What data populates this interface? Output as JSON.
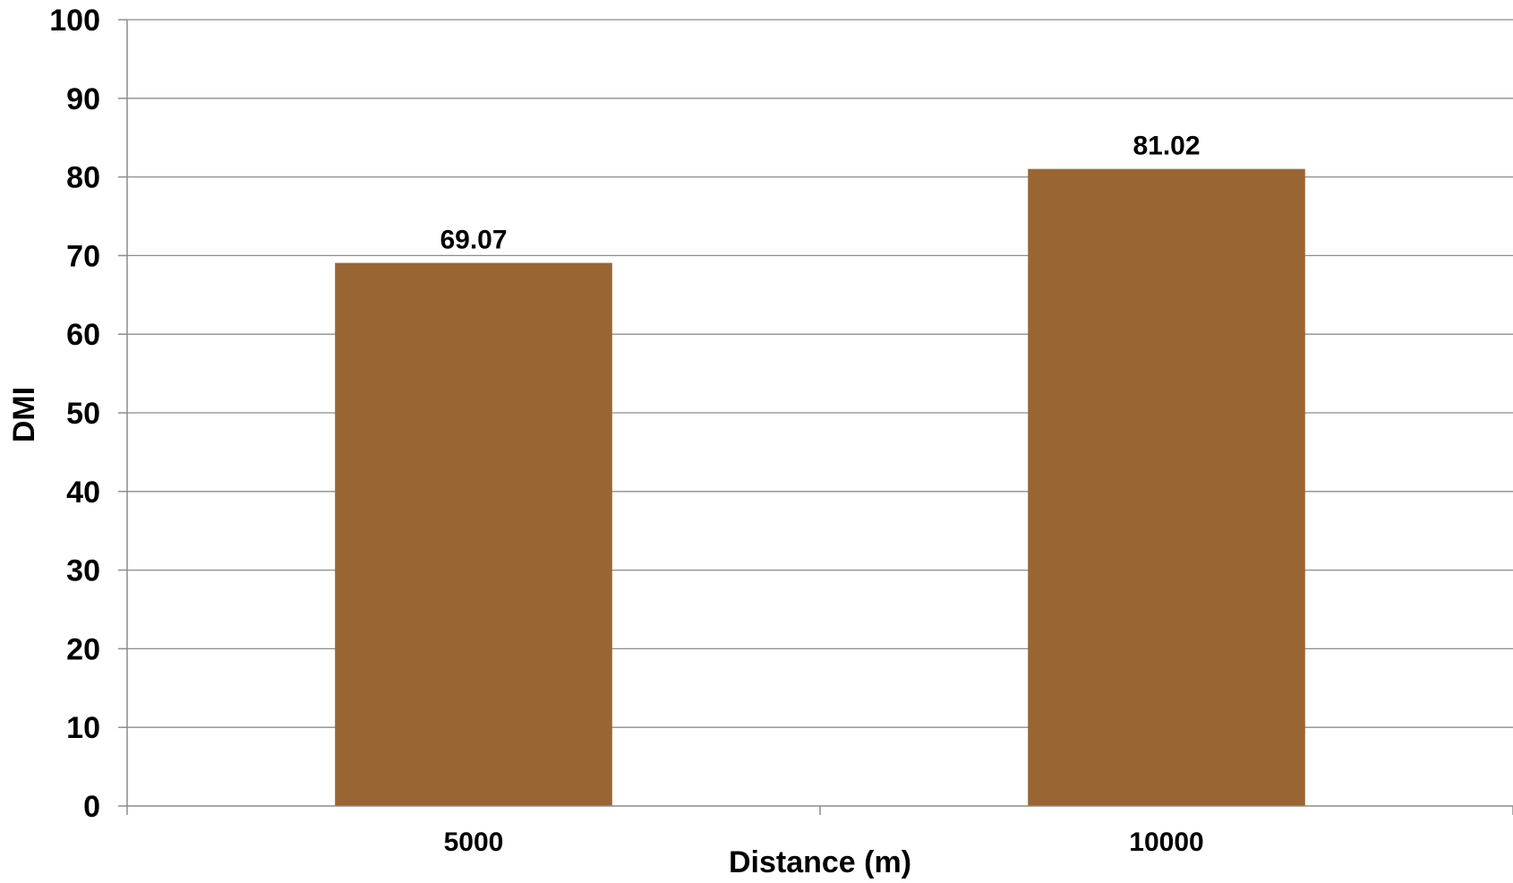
{
  "chart_data": {
    "type": "bar",
    "title": "",
    "xlabel": "Distance (m)",
    "ylabel": "DMI",
    "categories": [
      "5000",
      "10000"
    ],
    "series": [
      {
        "values": [
          69.07,
          81.02
        ],
        "data_labels": [
          "69.07",
          "81.02"
        ]
      }
    ],
    "ylim": [
      0,
      100
    ],
    "yticks": [
      0,
      10,
      20,
      30,
      40,
      50,
      60,
      70,
      80,
      90,
      100
    ],
    "grid": true,
    "legend": "none",
    "colors": {
      "bar": "#996633",
      "grid": "#8c8c8c",
      "text": "#000000"
    }
  }
}
